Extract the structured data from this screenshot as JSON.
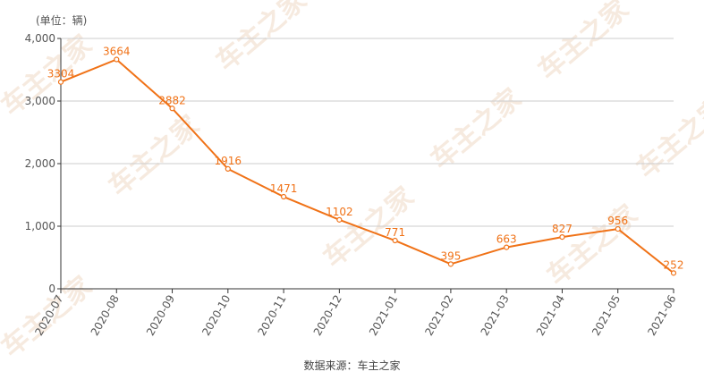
{
  "unit_label": "(单位：辆)",
  "source_text": "数据来源：车主之家",
  "watermark_text": "车主之家",
  "colors": {
    "line": "#f07217",
    "grid": "#cccccc",
    "axis": "#333333",
    "text": "#555555"
  },
  "chart_data": {
    "type": "line",
    "categories": [
      "2020-07",
      "2020-08",
      "2020-09",
      "2020-10",
      "2020-11",
      "2020-12",
      "2021-01",
      "2021-02",
      "2021-03",
      "2021-04",
      "2021-05",
      "2021-06"
    ],
    "series": [
      {
        "values": [
          3304,
          3664,
          2882,
          1916,
          1471,
          1102,
          771,
          395,
          663,
          827,
          956,
          252
        ]
      }
    ],
    "yticks": [
      "4,000",
      "3,000",
      "2,000",
      "1,000",
      "0"
    ],
    "ylim": [
      0,
      4000
    ],
    "grid": true,
    "data_labels": true
  }
}
